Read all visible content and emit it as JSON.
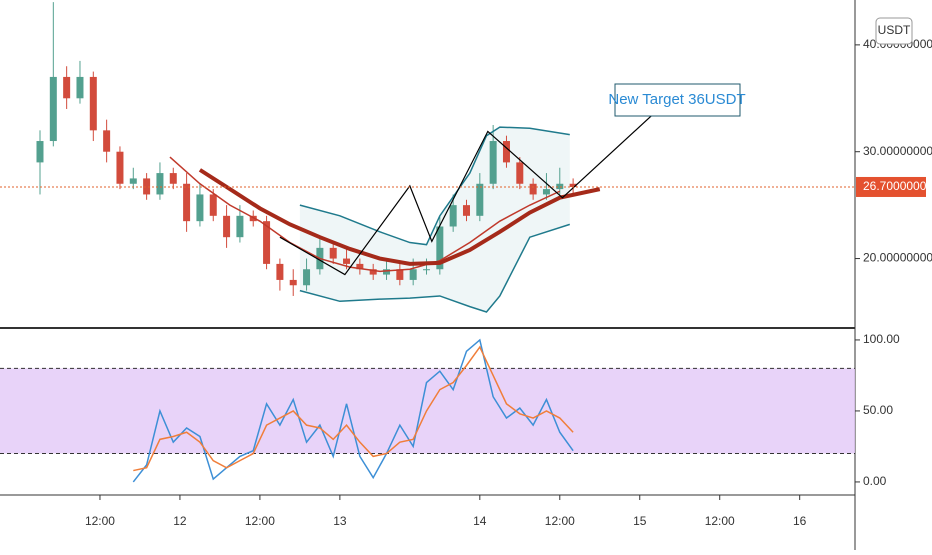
{
  "chart_data": {
    "type": "candlestick",
    "currency_button": "USDT",
    "annotation": "New Target 36USDT",
    "xlim": [
      0,
      125
    ],
    "xticks": [
      {
        "value": 12,
        "label": "12:00"
      },
      {
        "value": 24,
        "label": "12"
      },
      {
        "value": 36,
        "label": "12:00"
      },
      {
        "value": 48,
        "label": "13"
      },
      {
        "value": 69,
        "label": "14"
      },
      {
        "value": 81,
        "label": "12:00"
      },
      {
        "value": 93,
        "label": "15"
      },
      {
        "value": 105,
        "label": "12:00"
      },
      {
        "value": 117,
        "label": "16"
      }
    ],
    "ylim": [
      13.5,
      44.2
    ],
    "yticks": [
      {
        "value": 20,
        "label": "20.00000000"
      },
      {
        "value": 30,
        "label": "30.00000000"
      },
      {
        "value": 40,
        "label": "40.00000000"
      }
    ],
    "last_price": {
      "value": 26.7,
      "label": "26.70000000"
    },
    "up_color": "#53a08f",
    "down_color": "#d24b3c",
    "candles": {
      "x": [
        3,
        5,
        7,
        9,
        11,
        13,
        15,
        17,
        19,
        21,
        23,
        25,
        27,
        29,
        31,
        33,
        35,
        37,
        39,
        41,
        43,
        45,
        47,
        49,
        51,
        53,
        55,
        57,
        59,
        61,
        63,
        65,
        67,
        69,
        71,
        73,
        75,
        77,
        79,
        81,
        83
      ],
      "open": [
        29,
        31,
        37,
        35,
        37,
        32,
        30,
        27,
        27.5,
        26,
        28,
        27,
        23.5,
        26,
        24,
        22,
        24,
        23.5,
        19.5,
        18,
        17.5,
        19,
        21,
        20,
        19.5,
        19,
        18.5,
        19,
        18,
        19,
        19,
        23,
        25,
        24,
        27,
        31,
        29,
        27,
        26,
        26.5,
        27
      ],
      "high": [
        32,
        44,
        38,
        38.5,
        37.5,
        33,
        30.5,
        28.5,
        28,
        29,
        28.5,
        28,
        27,
        26.5,
        25,
        25,
        24.5,
        24,
        20,
        19,
        20,
        22,
        21.5,
        21,
        20,
        19.5,
        20,
        19.5,
        20,
        20,
        24,
        26,
        25.5,
        28,
        32.5,
        31.5,
        29.5,
        27.5,
        28,
        28.5,
        27.5
      ],
      "low": [
        26,
        30.5,
        34,
        34.5,
        31,
        29,
        26.5,
        26.5,
        25.5,
        25.5,
        26.5,
        22.5,
        23,
        23.5,
        21,
        21.5,
        23,
        19,
        17,
        16.5,
        17,
        18.5,
        19.5,
        19,
        18.5,
        18,
        18,
        17.5,
        17.5,
        18.5,
        18.5,
        22.5,
        23.5,
        23.5,
        26.5,
        28.5,
        26.5,
        25.5,
        25.5,
        26,
        26
      ],
      "close": [
        31,
        37,
        35,
        37,
        32,
        30,
        27,
        27.5,
        26,
        28,
        27,
        23.5,
        26,
        24,
        22,
        24,
        23.5,
        19.5,
        18,
        17.5,
        19,
        21,
        20,
        19.5,
        19,
        18.5,
        19,
        18,
        19,
        19,
        23,
        25,
        24,
        27,
        31,
        29,
        27,
        26,
        26.5,
        27,
        26.7
      ]
    },
    "overlays": [
      {
        "color": "#c0392b",
        "width": 1.5,
        "x": [
          22.5,
          27,
          31.5,
          36,
          40.5,
          45,
          49.5,
          54,
          58.5,
          63,
          67.5,
          72,
          76.5,
          81
        ],
        "values": [
          29.5,
          27,
          25,
          23.5,
          21.5,
          20,
          19.2,
          18.8,
          19,
          19.8,
          21.5,
          23.5,
          25,
          26.3
        ]
      },
      {
        "color": "#a52a1a",
        "width": 4,
        "x": [
          27,
          31.5,
          36,
          40.5,
          45,
          49.5,
          54,
          58.5,
          63,
          67.5,
          72,
          76.5,
          81,
          87
        ],
        "values": [
          28.3,
          26.5,
          24.7,
          23.2,
          22,
          20.9,
          20,
          19.5,
          19.6,
          20.8,
          22.5,
          24.3,
          25.7,
          26.5
        ]
      },
      {
        "color": "#1f7a8c",
        "width": 1.5,
        "x": [
          42,
          48,
          54,
          58.5,
          61,
          63,
          67.5,
          70,
          72,
          76.5,
          82.5
        ],
        "values": [
          25,
          24,
          22.5,
          21.5,
          21.3,
          24,
          28,
          31.5,
          32.3,
          32.2,
          31.6
        ]
      },
      {
        "color": "#1f7a8c",
        "width": 1.5,
        "x": [
          42,
          48,
          54,
          58.5,
          63,
          67.5,
          70,
          72,
          76.5,
          82.5
        ],
        "values": [
          17,
          16,
          16.2,
          16.3,
          16.5,
          15.5,
          15,
          16.5,
          22,
          23.2
        ]
      },
      {
        "color": "#000000",
        "width": 1.2,
        "x": [
          39,
          48.75,
          58.5,
          61.8,
          70.2,
          81.4,
          99
        ],
        "values": [
          22,
          18.5,
          26.8,
          21.6,
          31.9,
          25.7,
          35.8
        ]
      }
    ],
    "oscillator": {
      "ylim": [
        -9.2,
        107
      ],
      "yticks": [
        {
          "value": 0,
          "label": "0.00"
        },
        {
          "value": 50,
          "label": "50.00"
        },
        {
          "value": 100,
          "label": "100.00"
        }
      ],
      "bands": [
        20,
        80
      ],
      "band_color": "#e2c8f7",
      "x": [
        17,
        19,
        21,
        23,
        25,
        27,
        29,
        31,
        33,
        35,
        37,
        39,
        41,
        43,
        45,
        47,
        49,
        51,
        53,
        55,
        57,
        59,
        61,
        63,
        65,
        67,
        69,
        71,
        73,
        75,
        77,
        79,
        81,
        83
      ],
      "series": [
        {
          "color": "#3d8fd6",
          "values": [
            0,
            12,
            50,
            28,
            38,
            32,
            2,
            10,
            18,
            22,
            55,
            40,
            58,
            28,
            40,
            18,
            55,
            18,
            3,
            20,
            40,
            25,
            70,
            78,
            65,
            92,
            100,
            60,
            45,
            52,
            40,
            58,
            35,
            22
          ]
        },
        {
          "color": "#f07e3a",
          "values": [
            8,
            10,
            30,
            32,
            35,
            28,
            15,
            10,
            15,
            20,
            40,
            45,
            50,
            40,
            38,
            30,
            40,
            28,
            18,
            20,
            28,
            30,
            50,
            65,
            70,
            82,
            95,
            75,
            55,
            48,
            45,
            50,
            45,
            35
          ]
        }
      ]
    }
  }
}
